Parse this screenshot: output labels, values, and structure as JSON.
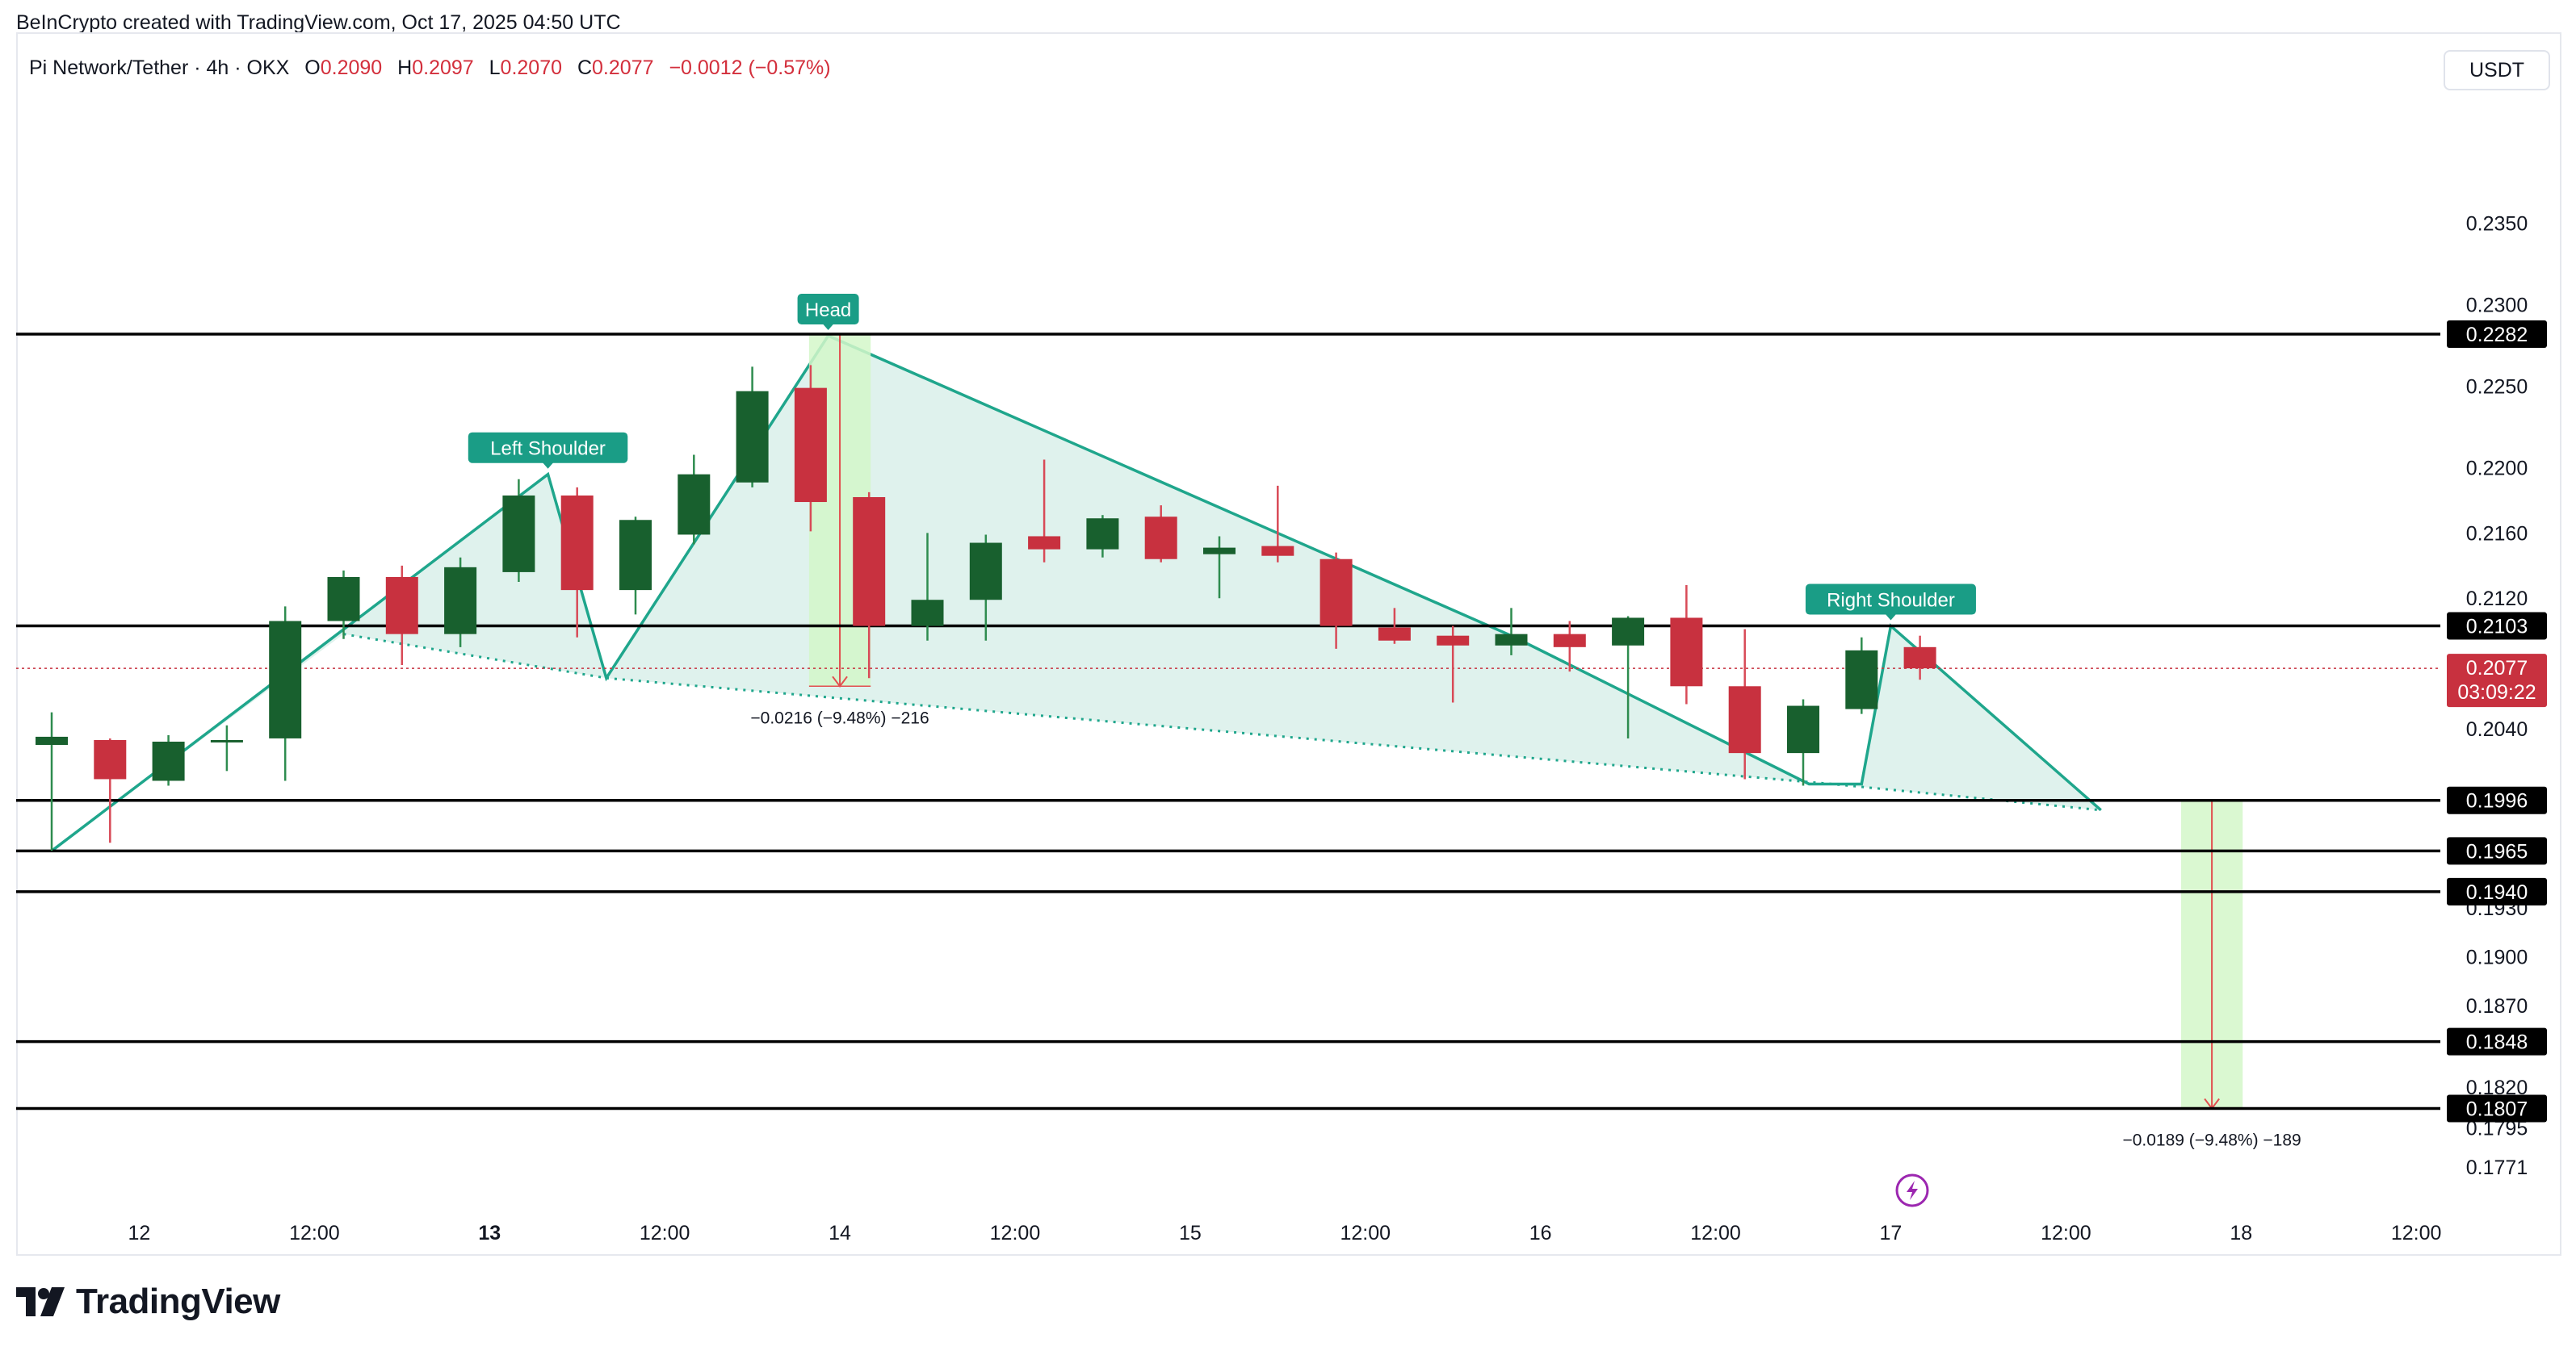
{
  "header": {
    "credit": "BeInCrypto created with TradingView.com, Oct 17, 2025 04:50 UTC"
  },
  "legend": {
    "symbol": "Pi Network/Tether · 4h · OKX",
    "open_key": "O",
    "open": "0.2090",
    "high_key": "H",
    "high": "0.2097",
    "low_key": "L",
    "low": "0.2070",
    "close_key": "C",
    "close": "0.2077",
    "change": "−0.0012 (−0.57%)"
  },
  "currency_button": "USDT",
  "brand": {
    "name": "TradingView"
  },
  "colors": {
    "up": "#18602e",
    "down": "#c8313f",
    "pattern": "#1fa68c",
    "pattern_fill": "#ddf1ec",
    "measure_fill": "#d4f7c9",
    "measure_line": "#e24f4f",
    "level": "#000000",
    "label_bg": "#000000",
    "price_bg": "#c8313f",
    "annotation_bg": "#1a9d86"
  },
  "chart_data": {
    "type": "candlestick",
    "symbol": "Pi Network/Tether",
    "interval": "4h",
    "exchange": "OKX",
    "ylim": [
      0.176,
      0.237
    ],
    "y_ticks": [
      "0.2350",
      "0.2300",
      "0.2250",
      "0.2200",
      "0.2160",
      "0.2120",
      "0.2040",
      "0.1930",
      "0.1900",
      "0.1870",
      "0.1820",
      "0.1795",
      "0.1771"
    ],
    "x_ticks": [
      {
        "label": "12",
        "bar": 1.5,
        "bold": false
      },
      {
        "label": "12:00",
        "bar": 4.5,
        "bold": false
      },
      {
        "label": "13",
        "bar": 7.5,
        "bold": true
      },
      {
        "label": "12:00",
        "bar": 10.5,
        "bold": false
      },
      {
        "label": "14",
        "bar": 13.5,
        "bold": false
      },
      {
        "label": "12:00",
        "bar": 16.5,
        "bold": false
      },
      {
        "label": "15",
        "bar": 19.5,
        "bold": false
      },
      {
        "label": "12:00",
        "bar": 22.5,
        "bold": false
      },
      {
        "label": "16",
        "bar": 25.5,
        "bold": false
      },
      {
        "label": "12:00",
        "bar": 28.5,
        "bold": false
      },
      {
        "label": "17",
        "bar": 31.5,
        "bold": false
      },
      {
        "label": "12:00",
        "bar": 34.5,
        "bold": false
      },
      {
        "label": "18",
        "bar": 37.5,
        "bold": false
      },
      {
        "label": "12:00",
        "bar": 40.5,
        "bold": false
      }
    ],
    "candles": [
      {
        "o": 0.203,
        "h": 0.205,
        "l": 0.1965,
        "c": 0.2035
      },
      {
        "o": 0.2033,
        "h": 0.2034,
        "l": 0.197,
        "c": 0.2009
      },
      {
        "o": 0.2008,
        "h": 0.2036,
        "l": 0.2005,
        "c": 0.2032
      },
      {
        "o": 0.2033,
        "h": 0.2042,
        "l": 0.2014,
        "c": 0.2033
      },
      {
        "o": 0.2034,
        "h": 0.2115,
        "l": 0.2008,
        "c": 0.2106
      },
      {
        "o": 0.2106,
        "h": 0.2137,
        "l": 0.2095,
        "c": 0.2133
      },
      {
        "o": 0.2133,
        "h": 0.214,
        "l": 0.2079,
        "c": 0.2098
      },
      {
        "o": 0.2098,
        "h": 0.2145,
        "l": 0.209,
        "c": 0.2139
      },
      {
        "o": 0.2136,
        "h": 0.2193,
        "l": 0.213,
        "c": 0.2183
      },
      {
        "o": 0.2183,
        "h": 0.2188,
        "l": 0.2096,
        "c": 0.2125
      },
      {
        "o": 0.2125,
        "h": 0.217,
        "l": 0.211,
        "c": 0.2168
      },
      {
        "o": 0.2159,
        "h": 0.2208,
        "l": 0.2153,
        "c": 0.2196
      },
      {
        "o": 0.2191,
        "h": 0.2262,
        "l": 0.2188,
        "c": 0.2247
      },
      {
        "o": 0.2249,
        "h": 0.2263,
        "l": 0.2161,
        "c": 0.2179
      },
      {
        "o": 0.2182,
        "h": 0.2185,
        "l": 0.2071,
        "c": 0.2103
      },
      {
        "o": 0.2103,
        "h": 0.216,
        "l": 0.2094,
        "c": 0.2119
      },
      {
        "o": 0.2119,
        "h": 0.2159,
        "l": 0.2094,
        "c": 0.2154
      },
      {
        "o": 0.2158,
        "h": 0.2205,
        "l": 0.2142,
        "c": 0.215
      },
      {
        "o": 0.215,
        "h": 0.2171,
        "l": 0.2145,
        "c": 0.2169
      },
      {
        "o": 0.217,
        "h": 0.2177,
        "l": 0.2142,
        "c": 0.2144
      },
      {
        "o": 0.2147,
        "h": 0.2158,
        "l": 0.212,
        "c": 0.2151
      },
      {
        "o": 0.2152,
        "h": 0.2189,
        "l": 0.2142,
        "c": 0.2146
      },
      {
        "o": 0.2144,
        "h": 0.2148,
        "l": 0.2089,
        "c": 0.2103
      },
      {
        "o": 0.2102,
        "h": 0.2114,
        "l": 0.2092,
        "c": 0.2094
      },
      {
        "o": 0.2097,
        "h": 0.2103,
        "l": 0.2056,
        "c": 0.2091
      },
      {
        "o": 0.2091,
        "h": 0.2114,
        "l": 0.2085,
        "c": 0.2098
      },
      {
        "o": 0.2098,
        "h": 0.2106,
        "l": 0.2075,
        "c": 0.209
      },
      {
        "o": 0.2091,
        "h": 0.2109,
        "l": 0.2034,
        "c": 0.2108
      },
      {
        "o": 0.2108,
        "h": 0.2128,
        "l": 0.2055,
        "c": 0.2066
      },
      {
        "o": 0.2066,
        "h": 0.2101,
        "l": 0.2009,
        "c": 0.2025
      },
      {
        "o": 0.2025,
        "h": 0.2058,
        "l": 0.2005,
        "c": 0.2054
      },
      {
        "o": 0.2052,
        "h": 0.2096,
        "l": 0.2049,
        "c": 0.2088
      },
      {
        "o": 0.209,
        "h": 0.2097,
        "l": 0.207,
        "c": 0.2077
      }
    ],
    "levels": [
      {
        "price": 0.2282,
        "label": "0.2282"
      },
      {
        "price": 0.2103,
        "label": "0.2103"
      },
      {
        "price": 0.1996,
        "label": "0.1996"
      },
      {
        "price": 0.1965,
        "label": "0.1965"
      },
      {
        "price": 0.194,
        "label": "0.1940"
      },
      {
        "price": 0.1848,
        "label": "0.1848"
      },
      {
        "price": 0.1807,
        "label": "0.1807"
      }
    ],
    "last_price": {
      "price": 0.2077,
      "label": "0.2077",
      "countdown": "03:09:22"
    },
    "pattern": {
      "outline": [
        [
          0,
          0.1965
        ],
        [
          8.5,
          0.2196
        ],
        [
          9.5,
          0.2071
        ],
        [
          13.3,
          0.2281
        ],
        [
          25,
          0.2097
        ],
        [
          30.1,
          0.2006
        ],
        [
          31,
          0.2006
        ],
        [
          31.5,
          0.2103
        ],
        [
          35.1,
          0.199
        ]
      ],
      "neckline": [
        [
          5,
          0.2098
        ],
        [
          9.5,
          0.2071
        ],
        [
          30.5,
          0.2006
        ],
        [
          35.1,
          0.199
        ]
      ],
      "labels": [
        {
          "text": "Left Shoulder",
          "bar": 8.5,
          "price": 0.2196
        },
        {
          "text": "Head",
          "bar": 13.3,
          "price": 0.2281
        },
        {
          "text": "Right Shoulder",
          "bar": 31.5,
          "price": 0.2103
        }
      ]
    },
    "measures": [
      {
        "bar_from": 13,
        "bar_to": 14,
        "price_from": 0.2282,
        "price_to": 0.2066,
        "label": "−0.0216 (−9.48%) −216"
      },
      {
        "bar_from": 36.5,
        "bar_to": 37.5,
        "price_from": 0.1996,
        "price_to": 0.1807,
        "label": "−0.0189 (−9.48%) −189"
      }
    ]
  }
}
